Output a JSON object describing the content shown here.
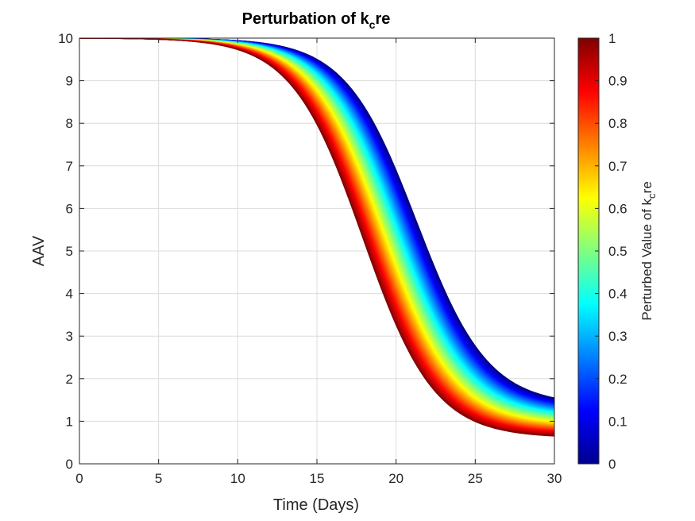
{
  "chart_data": {
    "type": "line",
    "title_main": "Perturbation of k",
    "title_sub": "c",
    "title_tail": "re",
    "xlabel": "Time (Days)",
    "ylabel": "AAV",
    "xlim": [
      0,
      30
    ],
    "ylim": [
      0,
      10
    ],
    "xticks": [
      "0",
      "5",
      "10",
      "15",
      "20",
      "25",
      "30"
    ],
    "yticks": [
      "0",
      "1",
      "2",
      "3",
      "4",
      "5",
      "6",
      "7",
      "8",
      "9",
      "10"
    ],
    "grid": true,
    "colormap": "jet",
    "series_count": 100,
    "curve_model": {
      "initial_value": 10,
      "midpoint_day_at_k0": 21.3,
      "midpoint_day_at_k1": 17.9,
      "final_value_at_k0": 1.55,
      "final_value_at_k1": 0.65
    },
    "series_sample": [
      {
        "perturbed_value": 0.0,
        "x": [
          0,
          10,
          15,
          18,
          20,
          22,
          25,
          30
        ],
        "y": [
          10,
          9.98,
          9.6,
          8.3,
          6.8,
          5.1,
          3.0,
          1.55
        ]
      },
      {
        "perturbed_value": 0.5,
        "x": [
          0,
          10,
          15,
          18,
          20,
          22,
          25,
          30
        ],
        "y": [
          10,
          9.97,
          9.3,
          7.4,
          5.6,
          3.9,
          2.2,
          1.05
        ]
      },
      {
        "perturbed_value": 1.0,
        "x": [
          0,
          10,
          15,
          18,
          20,
          22,
          25,
          30
        ],
        "y": [
          10,
          9.95,
          8.8,
          6.1,
          4.1,
          2.8,
          1.5,
          0.65
        ]
      }
    ],
    "colorbar": {
      "label_main": "Perturbed Value of k",
      "label_sub": "c",
      "label_tail": "re",
      "range": [
        0,
        1
      ],
      "ticks": [
        "0",
        "0.1",
        "0.2",
        "0.3",
        "0.4",
        "0.5",
        "0.6",
        "0.7",
        "0.8",
        "0.9",
        "1"
      ]
    }
  }
}
